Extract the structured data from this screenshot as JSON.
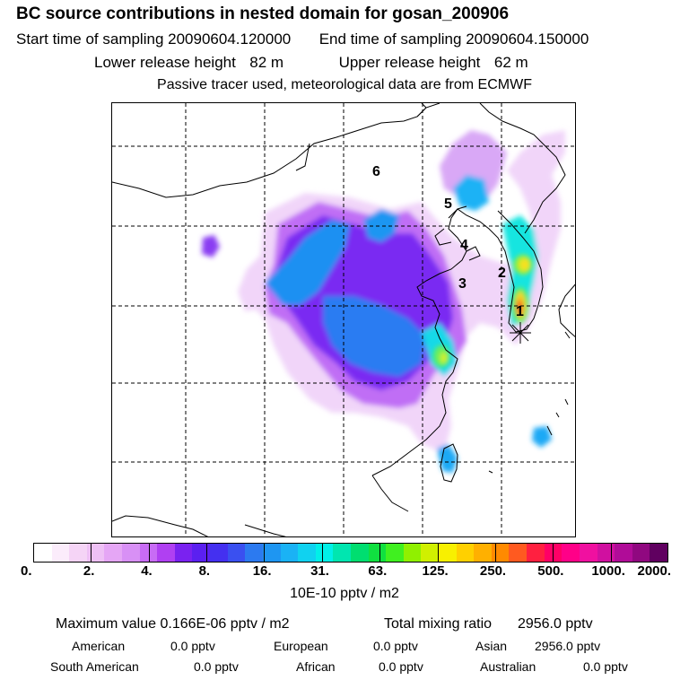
{
  "header": {
    "title": "BC  source contributions in nested domain for gosan_200906",
    "start_label": "Start time of sampling",
    "start_value": "20090604.120000",
    "end_label": "End time of sampling",
    "end_value": "20090604.150000",
    "lower_label": "Lower release height",
    "lower_value": "82 m",
    "upper_label": "Upper release height",
    "upper_value": "62 m",
    "note": "Passive tracer used, meteorological data are from ECMWF"
  },
  "map": {
    "regions": [
      "6",
      "5",
      "4",
      "3",
      "2",
      "1"
    ],
    "receptor_marker": "asterisk",
    "plume_colors": {
      "low": "#b37bf5",
      "mid": "#6a3cf0",
      "blue": "#1aa9f5",
      "cyan": "#12e5e0",
      "green": "#6af05a",
      "yellow": "#f5f020",
      "red": "#f02020"
    }
  },
  "colorbar": {
    "colors": [
      "#ffffff",
      "#fbecfb",
      "#f5d4f6",
      "#eec0f5",
      "#e5a6f5",
      "#d890f5",
      "#c86cf5",
      "#b040f2",
      "#7a22f0",
      "#5b20f0",
      "#4430f0",
      "#3a50f0",
      "#2c7af0",
      "#1e96f2",
      "#1ab2f5",
      "#10d2f0",
      "#00f0e8",
      "#00e6b0",
      "#00de70",
      "#10e040",
      "#40f020",
      "#90f000",
      "#d0f000",
      "#f8f000",
      "#ffd000",
      "#ffb000",
      "#ff8a00",
      "#ff5a20",
      "#ff2040",
      "#ff0066",
      "#ff0088",
      "#f010a0",
      "#d010a0",
      "#b00c98",
      "#900880",
      "#600060"
    ],
    "ticks": [
      "0.",
      "2.",
      "4.",
      "8.",
      "16.",
      "31.",
      "63.",
      "125.",
      "250.",
      "500.",
      "1000.",
      "2000."
    ],
    "unit": "10E-10 pptv / m2"
  },
  "stats": {
    "max_label": "Maximum value",
    "max_value": "0.166E-06 pptv / m2",
    "total_label": "Total mixing ratio",
    "total_value": "2956.0 pptv",
    "american_label": "American",
    "american_value": "0.0 pptv",
    "european_label": "European",
    "european_value": "0.0 pptv",
    "asian_label": "Asian",
    "asian_value": "2956.0 pptv",
    "south_american_label": "South American",
    "south_american_value": "0.0 pptv",
    "african_label": "African",
    "african_value": "0.0 pptv",
    "australian_label": "Australian",
    "australian_value": "0.0 pptv"
  }
}
